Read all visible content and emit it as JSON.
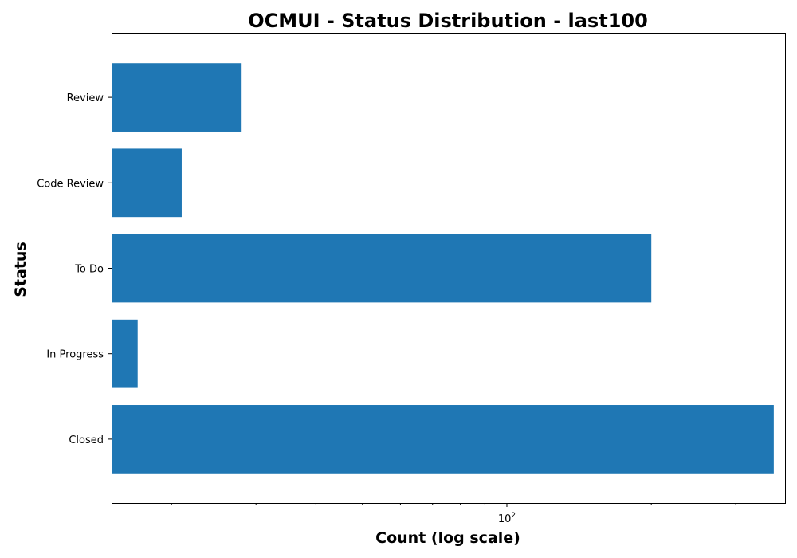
{
  "chart_data": {
    "type": "bar",
    "orientation": "horizontal",
    "title": "OCMUI - Status Distribution - last100",
    "xlabel": "Count (log scale)",
    "ylabel": "Status",
    "x_scale": "log",
    "xlim": [
      15,
      380
    ],
    "categories": [
      "Closed",
      "In Progress",
      "To Do",
      "Code Review",
      "Review"
    ],
    "values": [
      360,
      17,
      200,
      21,
      28
    ],
    "bar_color": "#1f77b4",
    "x_ticks": [
      {
        "base": "10",
        "exponent": "2",
        "value": 100
      }
    ],
    "x_minor_ticks": [
      20,
      30,
      40,
      50,
      60,
      70,
      80,
      90,
      200,
      300
    ],
    "grid": false,
    "legend": false
  }
}
